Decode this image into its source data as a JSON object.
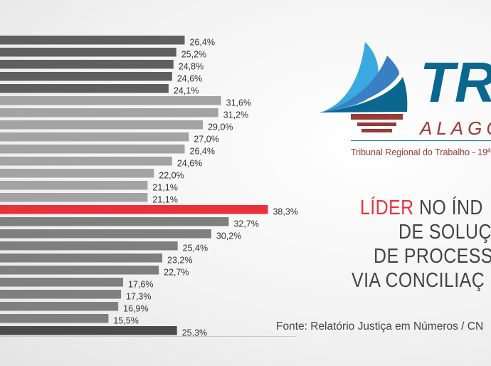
{
  "chart_data": {
    "type": "bar",
    "orientation": "horizontal",
    "values": [
      26.4,
      25.2,
      24.8,
      24.6,
      24.1,
      31.6,
      31.2,
      29.0,
      27.0,
      26.4,
      24.6,
      22.0,
      21.1,
      21.1,
      38.3,
      32.7,
      30.2,
      25.4,
      23.2,
      22.7,
      17.6,
      17.3,
      16.9,
      15.5,
      25.3
    ],
    "labels": [
      "26,4%",
      "25,2%",
      "24,8%",
      "24,6%",
      "24,1%",
      "31,6%",
      "31,2%",
      "29,0%",
      "27,0%",
      "26,4%",
      "24,6%",
      "22,0%",
      "21,1%",
      "21,1%",
      "38,3%",
      "32,7%",
      "30,2%",
      "25,4%",
      "23,2%",
      "22,7%",
      "17,6%",
      "17,3%",
      "16,9%",
      "15,5%",
      "25,3%"
    ],
    "bar_colors": [
      "#5f5f5f",
      "#5f5f5f",
      "#5f5f5f",
      "#5f5f5f",
      "#5f5f5f",
      "#a3a3a3",
      "#a3a3a3",
      "#a3a3a3",
      "#a3a3a3",
      "#a3a3a3",
      "#a3a3a3",
      "#a3a3a3",
      "#a3a3a3",
      "#a3a3a3",
      "#e8313a",
      "#7f7f7f",
      "#7f7f7f",
      "#7f7f7f",
      "#7f7f7f",
      "#7f7f7f",
      "#7f7f7f",
      "#7f7f7f",
      "#7f7f7f",
      "#7f7f7f",
      "#4b4b4b"
    ],
    "highlight_color": "#e8313a",
    "grid": false
  },
  "logo": {
    "title": "TRT",
    "subtitle": "ALAGOAS",
    "tagline": "Tribunal Regional do Trabalho - 19ª",
    "blue": "#0b6690",
    "red": "#9a3a36"
  },
  "headline": {
    "lines": [
      {
        "highlight": "LÍDER",
        "rest": " NO ÍND"
      },
      {
        "highlight": "",
        "rest": "DE SOLUÇ"
      },
      {
        "highlight": "",
        "rest": "DE PROCESS"
      },
      {
        "highlight": "",
        "rest": "VIA CONCILIAÇ"
      }
    ]
  },
  "source": "Fonte: Relatório Justiça em Números / CN"
}
